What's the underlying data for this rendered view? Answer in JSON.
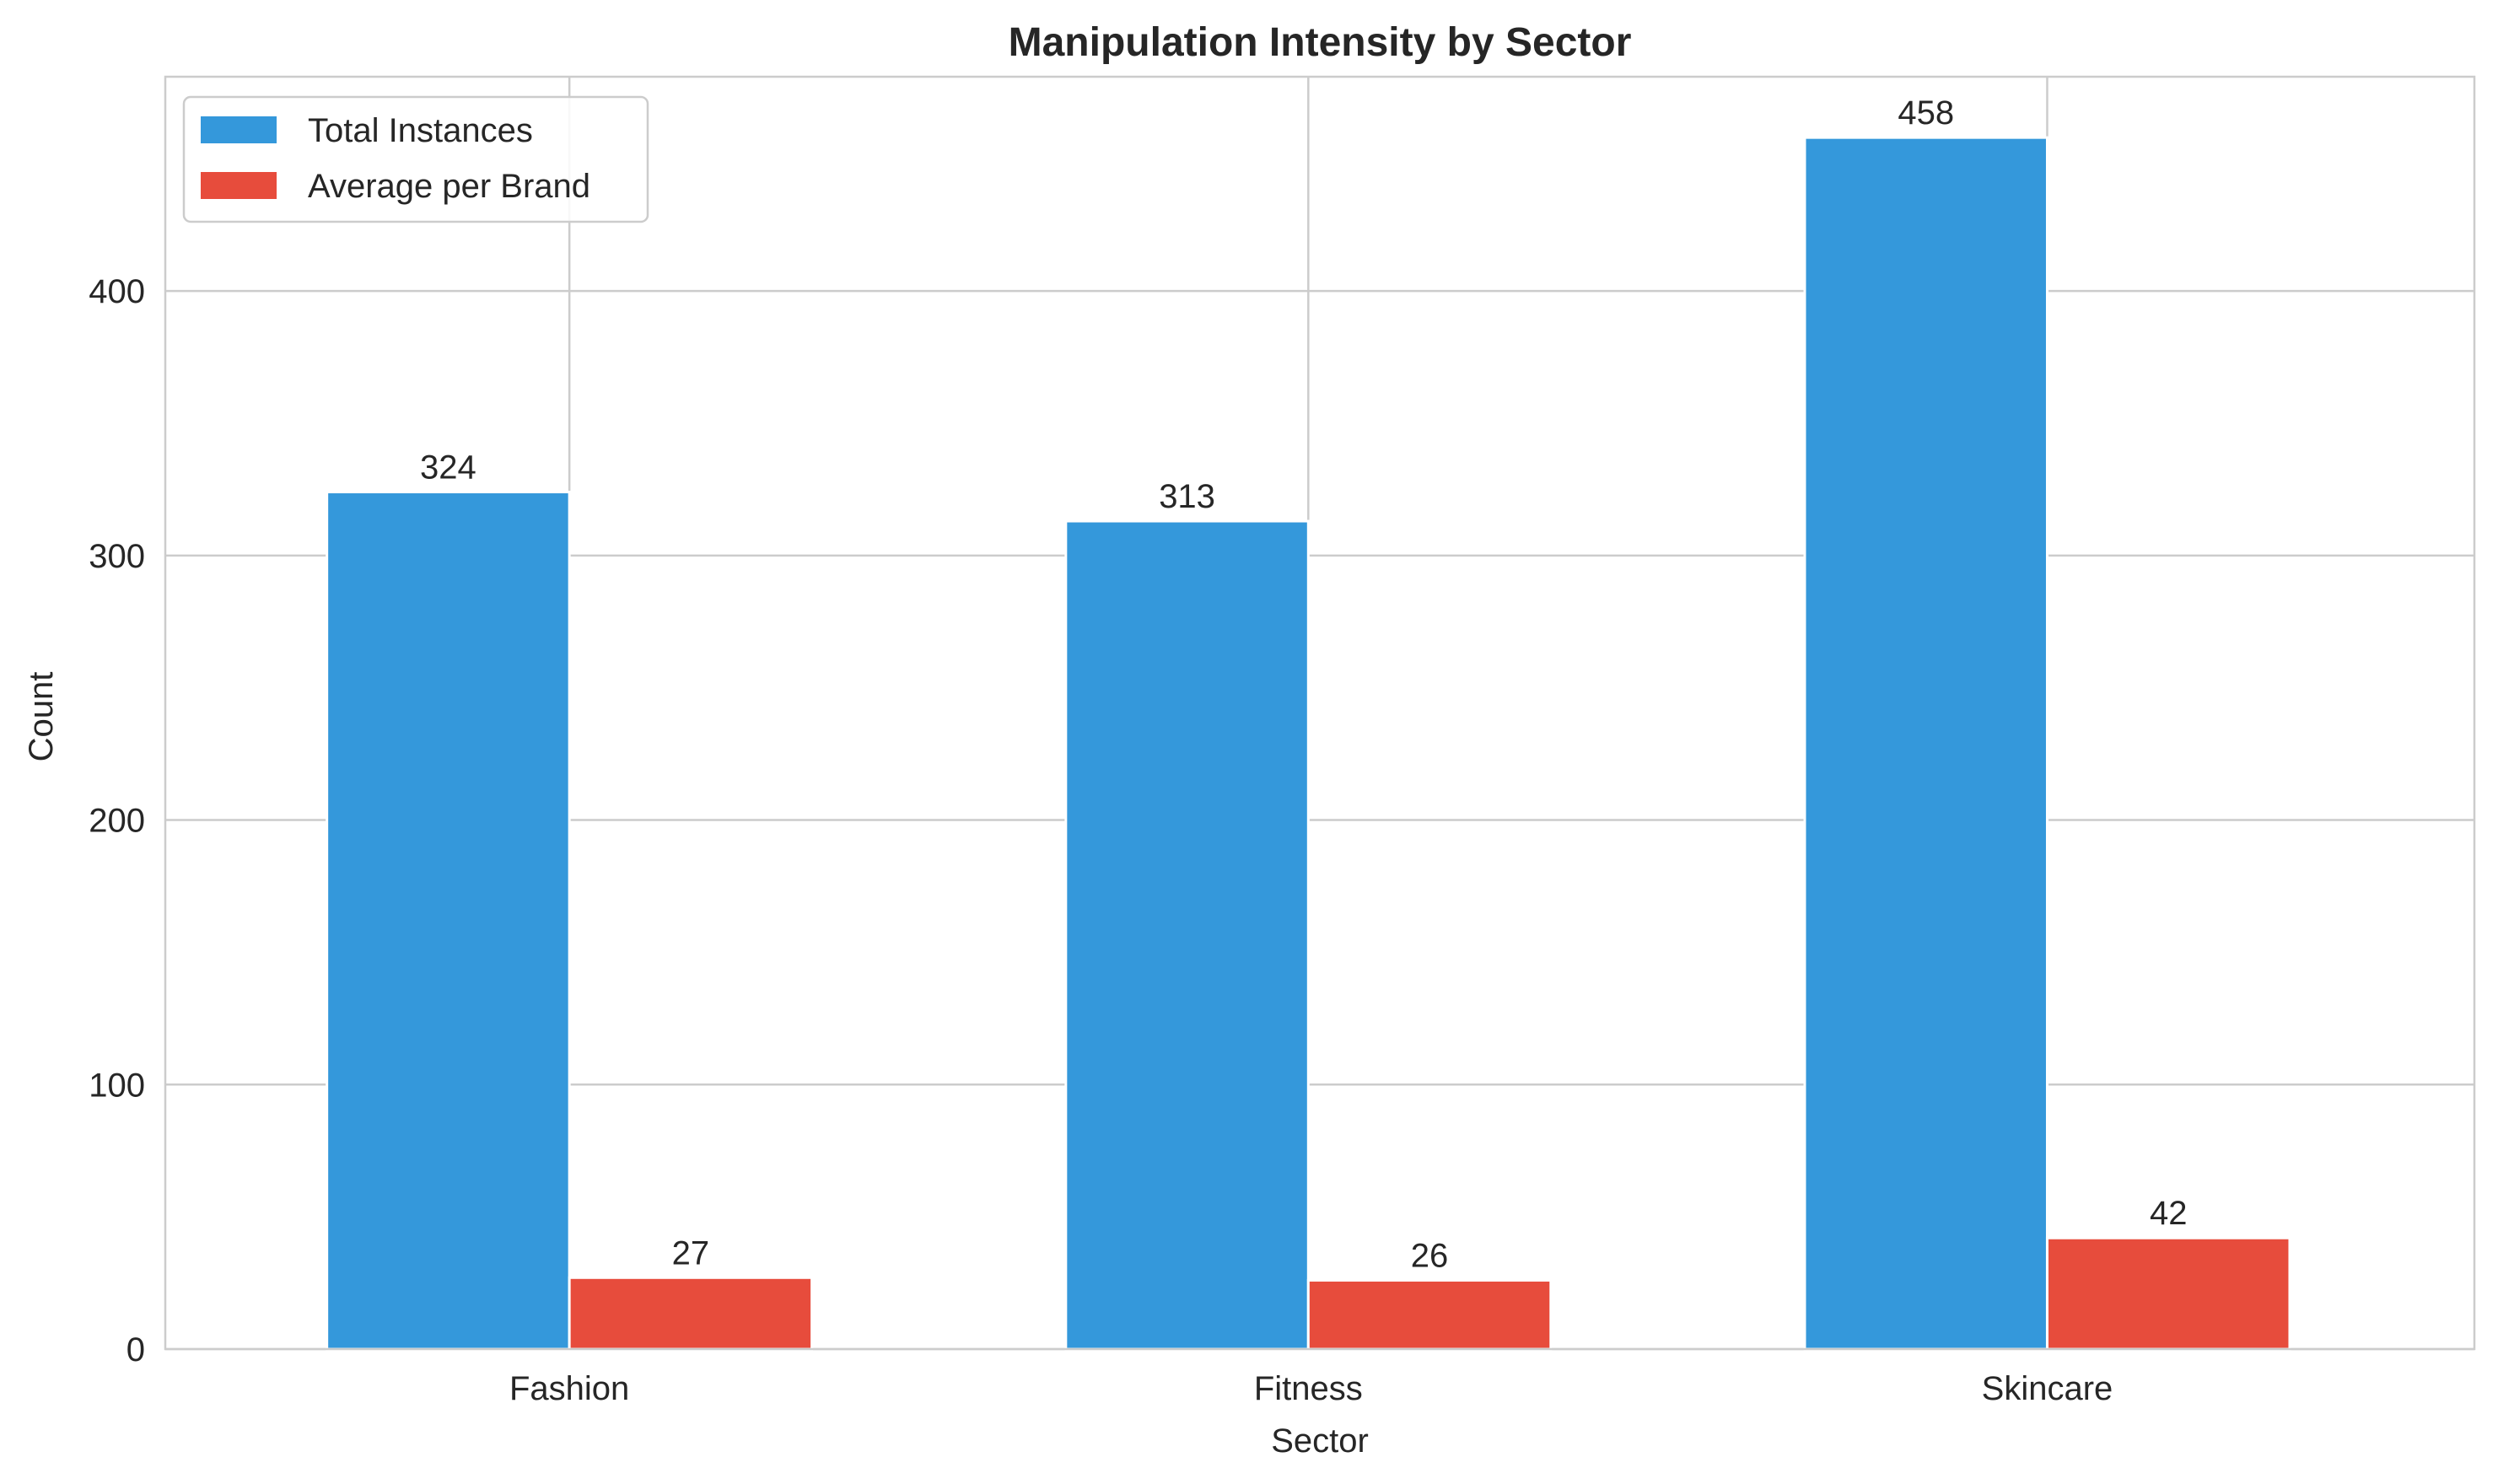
{
  "chart_data": {
    "type": "bar",
    "title": "Manipulation Intensity by Sector",
    "xlabel": "Sector",
    "ylabel": "Count",
    "categories": [
      "Fashion",
      "Fitness",
      "Skincare"
    ],
    "series": [
      {
        "name": "Total Instances",
        "values": [
          324,
          313,
          458
        ],
        "color": "#3498db"
      },
      {
        "name": "Average per Brand",
        "values": [
          27,
          26,
          42
        ],
        "color": "#e74c3c"
      }
    ],
    "ylim": [
      0,
      481
    ],
    "yticks": [
      0,
      100,
      200,
      300,
      400
    ],
    "grid": true,
    "legend_position": "top-left"
  }
}
